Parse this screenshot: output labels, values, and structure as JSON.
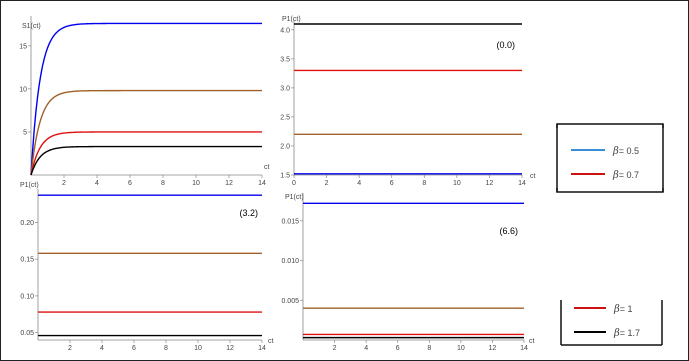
{
  "colors": {
    "blue": "#0000ee",
    "red": "#dd1111",
    "brown": "#a0612a",
    "black": "#000000",
    "legend_blue": "#3a8ed6",
    "legend_red": "#cc1111",
    "axis": "#888888",
    "frame": "#222222"
  },
  "chart_data": [
    {
      "type": "line",
      "ylabel": "S1(ct)",
      "xlabel": "ct",
      "xlim": [
        0,
        14
      ],
      "ylim": [
        0,
        18
      ],
      "xticks": [
        2,
        4,
        6,
        8,
        10,
        12,
        14
      ],
      "yticks": [
        5,
        10,
        15
      ],
      "grid": false,
      "series": [
        {
          "color": "#0000ee",
          "plateau": 17.6
        },
        {
          "color": "#a0612a",
          "plateau": 9.8
        },
        {
          "color": "#dd1111",
          "plateau": 5.0
        },
        {
          "color": "#000000",
          "plateau": 3.3
        }
      ]
    },
    {
      "type": "line",
      "ylabel": "P1(ct)",
      "xlabel": "ct",
      "annotation": "(0.0)",
      "xlim": [
        0,
        14
      ],
      "ylim": [
        1.5,
        4.1
      ],
      "xticks": [
        0,
        2,
        4,
        6,
        8,
        10,
        12,
        14
      ],
      "yticks": [
        1.5,
        2.0,
        2.5,
        3.0,
        3.5,
        4.0
      ],
      "ytick_labels": [
        "1.5",
        "2.0",
        "2.5",
        "3.0",
        "3.5",
        "4.0"
      ],
      "grid": false,
      "series": [
        {
          "color": "#000000",
          "value": 4.1
        },
        {
          "color": "#dd1111",
          "value": 3.3
        },
        {
          "color": "#a0612a",
          "value": 2.2
        },
        {
          "color": "#0000ee",
          "value": 1.52
        }
      ]
    },
    {
      "type": "line",
      "ylabel": "P1(ct)",
      "xlabel": "ct",
      "annotation": "(3.2)",
      "xlim": [
        0,
        14
      ],
      "ylim": [
        0.04,
        0.24
      ],
      "xticks": [
        2,
        4,
        6,
        8,
        10,
        12,
        14
      ],
      "yticks": [
        0.05,
        0.1,
        0.15,
        0.2
      ],
      "ytick_labels": [
        "0.05",
        "0.10",
        "0.15",
        "0.20"
      ],
      "grid": false,
      "series": [
        {
          "color": "#0000ee",
          "value": 0.237
        },
        {
          "color": "#a0612a",
          "value": 0.158
        },
        {
          "color": "#dd1111",
          "value": 0.078
        },
        {
          "color": "#000000",
          "value": 0.046
        }
      ]
    },
    {
      "type": "line",
      "ylabel": "P1(ct)",
      "xlabel": "ct",
      "annotation": "(6.6)",
      "xlim": [
        0,
        14
      ],
      "ylim": [
        0,
        0.018
      ],
      "xticks": [
        2,
        4,
        6,
        8,
        10,
        12,
        14
      ],
      "yticks": [
        0.005,
        0.01,
        0.015
      ],
      "ytick_labels": [
        "0.005",
        "0.010",
        "0.015"
      ],
      "grid": false,
      "series": [
        {
          "color": "#0000ee",
          "value": 0.0172
        },
        {
          "color": "#a0612a",
          "value": 0.004
        },
        {
          "color": "#dd1111",
          "value": 0.0007
        },
        {
          "color": "#000000",
          "value": 0.0003
        }
      ]
    }
  ],
  "legend_top": {
    "items": [
      {
        "symbol": "β",
        "eq": "= 0.5",
        "color": "#3a8ed6"
      },
      {
        "symbol": "β",
        "eq": "= 0.7",
        "color": "#cc1111"
      }
    ]
  },
  "legend_bottom": {
    "items": [
      {
        "symbol": "β",
        "eq": "= 1",
        "color": "#cc1111"
      },
      {
        "symbol": "β",
        "eq": "= 1.7",
        "color": "#000000"
      }
    ]
  }
}
